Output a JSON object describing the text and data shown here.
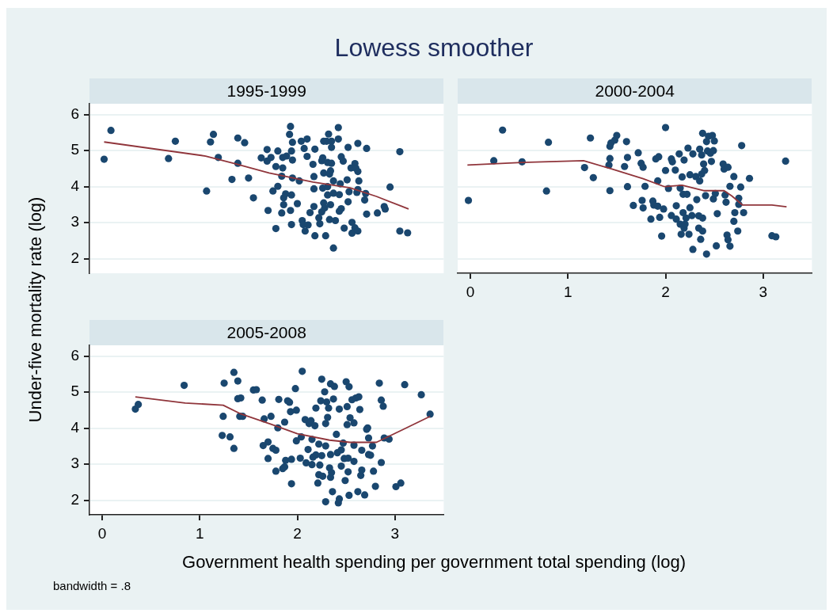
{
  "chart_data": [
    {
      "type": "scatter",
      "title": "Lowess smoother",
      "subtitle": "1995-1999",
      "ylabel": "Under-five mortality rate (log)",
      "xlim": [
        -0.13,
        3.5
      ],
      "ylim": [
        1.6,
        6.3
      ],
      "xticks": [
        0,
        1,
        2,
        3
      ],
      "yticks": [
        2,
        3,
        4,
        5,
        6
      ],
      "grid": "y",
      "tick_labels": "y",
      "series": [
        {
          "type": "scatter",
          "color": "#1a476f",
          "x": [
            0.02,
            0.09,
            0.68,
            0.75,
            1.07,
            1.11,
            1.14,
            1.19,
            1.33,
            1.39,
            1.39,
            1.46,
            1.5,
            1.55,
            1.63,
            1.69,
            1.69,
            1.7,
            1.73,
            1.75,
            1.78,
            1.78,
            1.8,
            1.8,
            1.84,
            1.84,
            1.85,
            1.85,
            1.86,
            1.86,
            1.88,
            1.89,
            1.92,
            1.93,
            1.93,
            1.94,
            1.94,
            1.94,
            1.95,
            1.95,
            1.95,
            2.0,
            2.02,
            2.04,
            2.05,
            2.06,
            2.07,
            2.08,
            2.1,
            2.1,
            2.11,
            2.13,
            2.16,
            2.17,
            2.17,
            2.17,
            2.18,
            2.18,
            2.22,
            2.23,
            2.25,
            2.25,
            2.26,
            2.26,
            2.27,
            2.27,
            2.27,
            2.28,
            2.29,
            2.3,
            2.31,
            2.31,
            2.31,
            2.32,
            2.33,
            2.33,
            2.34,
            2.34,
            2.35,
            2.35,
            2.35,
            2.37,
            2.37,
            2.37,
            2.39,
            2.42,
            2.42,
            2.43,
            2.43,
            2.44,
            2.45,
            2.45,
            2.47,
            2.48,
            2.51,
            2.52,
            2.52,
            2.53,
            2.55,
            2.56,
            2.56,
            2.59,
            2.59,
            2.6,
            2.61,
            2.62,
            2.62,
            2.62,
            2.63,
            2.62,
            2.69,
            2.7,
            2.71,
            2.71,
            2.82,
            2.89,
            2.9,
            2.95,
            3.05,
            3.05,
            3.13
          ],
          "values": [
            4.76,
            5.56,
            4.78,
            5.26,
            3.88,
            5.24,
            5.45,
            4.81,
            4.2,
            5.35,
            4.65,
            5.22,
            4.24,
            3.69,
            4.8,
            5.03,
            4.71,
            3.34,
            4.81,
            3.88,
            2.84,
            4.56,
            4.01,
            4.99,
            3.27,
            4.29,
            4.52,
            4.81,
            3.69,
            3.5,
            3.8,
            4.85,
            5.45,
            5.67,
            3.34,
            2.95,
            3.77,
            4.99,
            4.74,
            5.23,
            4.24,
            3.53,
            4.16,
            5.26,
            3.06,
            2.95,
            5.06,
            2.77,
            5.32,
            4.84,
            2.94,
            3.28,
            4.62,
            4.28,
            3.45,
            3.94,
            2.64,
            5.04,
            3.14,
            2.97,
            3.3,
            4.72,
            3.96,
            4.8,
            5.26,
            4.38,
            3.55,
            3.41,
            2.64,
            5.26,
            4.0,
            4.67,
            3.77,
            5.46,
            4.35,
            3.09,
            3.5,
            4.44,
            4.65,
            5.26,
            5.09,
            4.16,
            2.3,
            3.82,
            3.06,
            5.64,
            5.32,
            3.32,
            3.78,
            4.08,
            4.83,
            3.39,
            4.71,
            2.85,
            4.19,
            3.58,
            5.09,
            3.86,
            4.52,
            3.01,
            2.71,
            4.64,
            2.86,
            4.51,
            3.84,
            2.77,
            5.2,
            4.42,
            4.16,
            3.92,
            3.63,
            3.81,
            5.06,
            3.24,
            3.27,
            3.45,
            3.38,
            3.99,
            4.97,
            2.77,
            2.72
          ]
        },
        {
          "type": "line",
          "color": "#90353b",
          "x": [
            0.02,
            1.06,
            1.36,
            1.71,
            2.16,
            2.54,
            2.81,
            3.14
          ],
          "values": [
            5.24,
            4.85,
            4.64,
            4.38,
            4.13,
            3.97,
            3.73,
            3.38
          ]
        }
      ]
    },
    {
      "type": "scatter",
      "subtitle": "2000-2004",
      "xlim": [
        -0.13,
        3.5
      ],
      "ylim": [
        1.6,
        6.3
      ],
      "xticks": [
        0,
        1,
        2,
        3
      ],
      "yticks": [
        2,
        3,
        4,
        5,
        6
      ],
      "grid": "y",
      "tick_labels": "x",
      "series": [
        {
          "type": "scatter",
          "color": "#1a476f",
          "x": [
            -0.02,
            0.24,
            0.33,
            0.53,
            0.78,
            0.8,
            1.17,
            1.23,
            1.26,
            1.42,
            1.43,
            1.43,
            1.43,
            1.44,
            1.48,
            1.5,
            1.58,
            1.6,
            1.61,
            1.61,
            1.67,
            1.72,
            1.75,
            1.76,
            1.77,
            1.77,
            1.79,
            1.85,
            1.87,
            1.88,
            1.9,
            1.92,
            1.92,
            1.93,
            1.94,
            1.96,
            1.98,
            2.0,
            2.0,
            2.03,
            2.06,
            2.06,
            2.07,
            2.1,
            2.11,
            2.11,
            2.14,
            2.15,
            2.15,
            2.16,
            2.17,
            2.18,
            2.18,
            2.19,
            2.19,
            2.2,
            2.21,
            2.22,
            2.23,
            2.24,
            2.25,
            2.25,
            2.27,
            2.28,
            2.28,
            2.31,
            2.32,
            2.34,
            2.34,
            2.35,
            2.35,
            2.36,
            2.37,
            2.37,
            2.38,
            2.38,
            2.38,
            2.39,
            2.4,
            2.41,
            2.42,
            2.42,
            2.43,
            2.44,
            2.46,
            2.47,
            2.48,
            2.49,
            2.49,
            2.5,
            2.51,
            2.52,
            2.53,
            2.59,
            2.6,
            2.61,
            2.62,
            2.63,
            2.64,
            2.64,
            2.66,
            2.66,
            2.7,
            2.7,
            2.71,
            2.74,
            2.75,
            2.75,
            2.77,
            2.78,
            2.8,
            2.86,
            3.09,
            3.13,
            3.23
          ],
          "values": [
            3.62,
            4.72,
            5.57,
            4.69,
            3.88,
            5.23,
            4.53,
            5.35,
            4.25,
            4.6,
            3.89,
            5.12,
            4.78,
            5.21,
            5.29,
            5.42,
            4.56,
            5.25,
            4.81,
            4.0,
            3.48,
            4.94,
            4.65,
            3.62,
            4.54,
            3.41,
            4.01,
            3.1,
            3.6,
            3.49,
            4.77,
            4.16,
            3.46,
            4.83,
            3.15,
            2.63,
            3.38,
            4.45,
            5.64,
            3.95,
            3.2,
            4.77,
            4.69,
            4.46,
            3.47,
            3.1,
            4.91,
            3.96,
            2.96,
            2.68,
            4.27,
            3.79,
            3.28,
            4.74,
            2.85,
            2.96,
            3.13,
            3.79,
            5.07,
            2.68,
            4.33,
            3.42,
            3.2,
            2.26,
            4.91,
            4.28,
            3.64,
            3.19,
            2.85,
            5.04,
            4.16,
            2.54,
            4.35,
            4.88,
            3.13,
            2.77,
            5.48,
            4.63,
            4.45,
            3.75,
            2.13,
            5.25,
            4.99,
            5.4,
            4.93,
            4.7,
            5.42,
            3.66,
            5.0,
            5.27,
            3.81,
            2.36,
            3.25,
            4.63,
            4.49,
            3.77,
            3.57,
            2.66,
            4.54,
            2.53,
            4.01,
            2.35,
            3.04,
            4.28,
            3.28,
            2.77,
            3.51,
            3.68,
            3.99,
            5.14,
            3.28,
            4.23,
            2.64,
            2.61,
            4.71
          ]
        },
        {
          "type": "line",
          "color": "#90353b",
          "x": [
            -0.03,
            0.53,
            1.16,
            1.45,
            1.77,
            1.99,
            2.17,
            2.39,
            2.6,
            2.68,
            2.79,
            3.09,
            3.24
          ],
          "values": [
            4.6,
            4.67,
            4.72,
            4.49,
            4.22,
            4.0,
            4.04,
            3.89,
            3.89,
            3.74,
            3.49,
            3.49,
            3.44
          ]
        }
      ]
    },
    {
      "type": "scatter",
      "subtitle": "2005-2008",
      "xlabel": "Government health spending per government total spending (log)",
      "annotations": [
        "bandwidth = .8"
      ],
      "xlim": [
        -0.13,
        3.5
      ],
      "ylim": [
        1.6,
        6.3
      ],
      "xticks": [
        0,
        1,
        2,
        3
      ],
      "yticks": [
        2,
        3,
        4,
        5,
        6
      ],
      "grid": "y",
      "series": [
        {
          "type": "scatter",
          "color": "#1a476f",
          "x": [
            0.34,
            0.37,
            0.84,
            1.23,
            1.24,
            1.25,
            1.31,
            1.35,
            1.35,
            1.39,
            1.39,
            1.41,
            1.42,
            1.44,
            1.55,
            1.58,
            1.64,
            1.65,
            1.66,
            1.7,
            1.7,
            1.73,
            1.75,
            1.78,
            1.78,
            1.8,
            1.81,
            1.85,
            1.87,
            1.87,
            1.88,
            1.9,
            1.92,
            1.93,
            1.94,
            1.94,
            1.98,
            1.99,
            1.99,
            2.03,
            2.04,
            2.05,
            2.08,
            2.09,
            2.11,
            2.12,
            2.14,
            2.15,
            2.15,
            2.16,
            2.18,
            2.19,
            2.19,
            2.21,
            2.22,
            2.22,
            2.23,
            2.24,
            2.25,
            2.25,
            2.26,
            2.28,
            2.29,
            2.29,
            2.29,
            2.3,
            2.31,
            2.32,
            2.33,
            2.34,
            2.34,
            2.34,
            2.35,
            2.36,
            2.37,
            2.38,
            2.4,
            2.41,
            2.42,
            2.43,
            2.43,
            2.45,
            2.45,
            2.47,
            2.48,
            2.49,
            2.5,
            2.51,
            2.51,
            2.52,
            2.52,
            2.53,
            2.53,
            2.54,
            2.56,
            2.58,
            2.58,
            2.58,
            2.6,
            2.62,
            2.63,
            2.64,
            2.65,
            2.66,
            2.66,
            2.69,
            2.71,
            2.72,
            2.73,
            2.73,
            2.75,
            2.77,
            2.78,
            2.8,
            2.84,
            2.86,
            2.86,
            2.88,
            2.89,
            2.94,
            3.01,
            3.06,
            3.1,
            3.27,
            3.36
          ],
          "values": [
            4.53,
            4.66,
            5.19,
            3.8,
            4.33,
            5.25,
            3.76,
            3.44,
            5.55,
            4.82,
            5.31,
            4.33,
            4.84,
            4.33,
            5.06,
            5.07,
            4.78,
            3.52,
            4.26,
            3.16,
            3.62,
            4.33,
            3.44,
            3.39,
            2.81,
            4.01,
            4.8,
            2.88,
            4.17,
            2.93,
            3.11,
            4.76,
            4.72,
            4.46,
            3.14,
            2.46,
            5.1,
            4.5,
            3.65,
            3.17,
            3.76,
            5.58,
            4.24,
            3.04,
            3.41,
            4.13,
            4.21,
            3.69,
            2.99,
            3.2,
            4.07,
            4.56,
            3.26,
            2.48,
            3.56,
            2.71,
            2.98,
            4.76,
            5.36,
            3.24,
            2.67,
            5.01,
            4.13,
            3.51,
            1.96,
            4.73,
            4.3,
            4.56,
            2.9,
            3.27,
            5.23,
            2.64,
            2.77,
            2.24,
            4.81,
            5.16,
            3.83,
            3.32,
            1.93,
            2.04,
            4.53,
            2.95,
            3.4,
            3.59,
            3.16,
            2.55,
            5.29,
            4.1,
            4.6,
            2.79,
            3.17,
            5.15,
            2.14,
            4.29,
            4.79,
            4.15,
            3.53,
            3.08,
            4.84,
            2.24,
            4.87,
            4.52,
            2.69,
            2.84,
            3.39,
            2.15,
            3.97,
            4.01,
            3.73,
            3.27,
            3.25,
            3.51,
            2.81,
            2.39,
            5.25,
            3.05,
            4.78,
            4.61,
            3.73,
            3.7,
            2.38,
            2.48,
            5.21,
            4.93,
            4.39
          ]
        },
        {
          "type": "line",
          "color": "#90353b",
          "x": [
            0.34,
            0.85,
            1.24,
            1.41,
            1.73,
            2.0,
            2.33,
            2.54,
            2.81,
            3.08,
            3.36
          ],
          "values": [
            4.87,
            4.7,
            4.64,
            4.41,
            4.11,
            3.85,
            3.67,
            3.61,
            3.61,
            3.96,
            4.33
          ]
        }
      ]
    }
  ]
}
